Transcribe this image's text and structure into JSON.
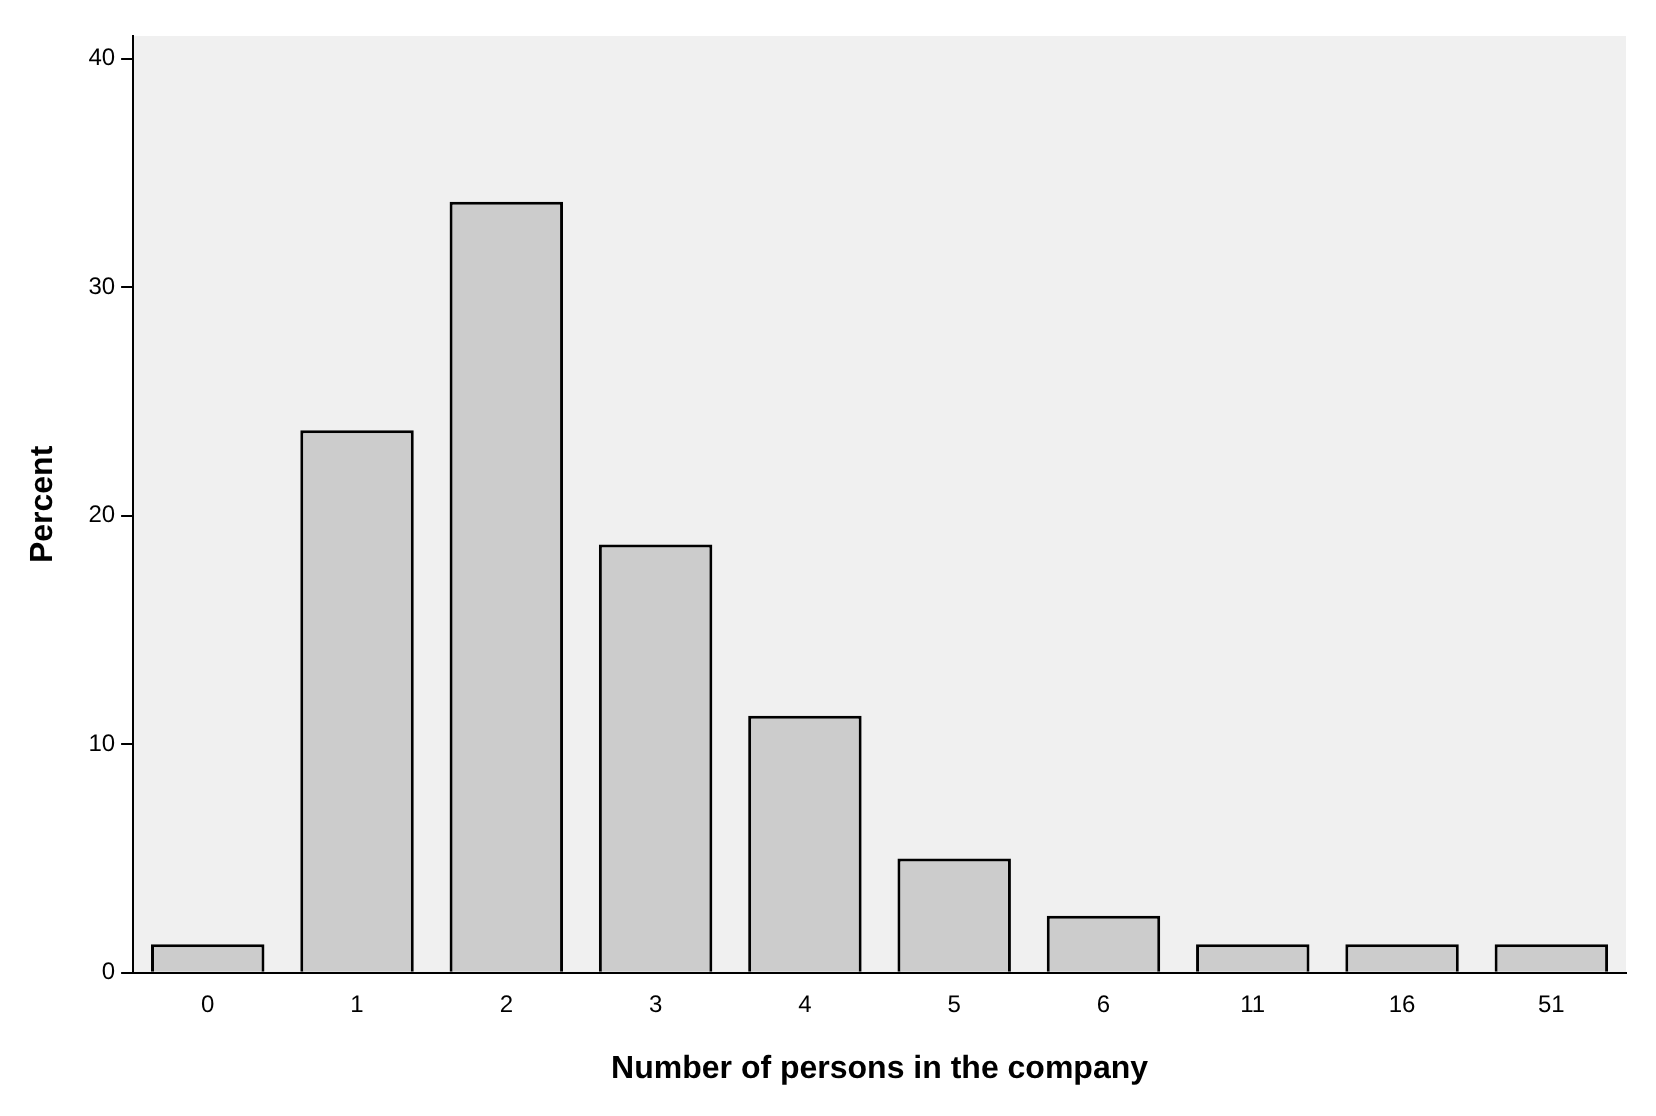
{
  "chart_data": {
    "type": "bar",
    "xlabel": "Number of persons in the company",
    "ylabel": "Percent",
    "categories": [
      "0",
      "1",
      "2",
      "3",
      "4",
      "5",
      "6",
      "11",
      "16",
      "51"
    ],
    "values": [
      1.25,
      23.75,
      33.75,
      18.75,
      11.25,
      5,
      2.5,
      1.25,
      1.25,
      1.25
    ],
    "color": "#cccccc",
    "ylim": [
      0,
      41
    ],
    "yticks": [
      0,
      10,
      20,
      30,
      40
    ],
    "grid": false,
    "legend": false
  }
}
